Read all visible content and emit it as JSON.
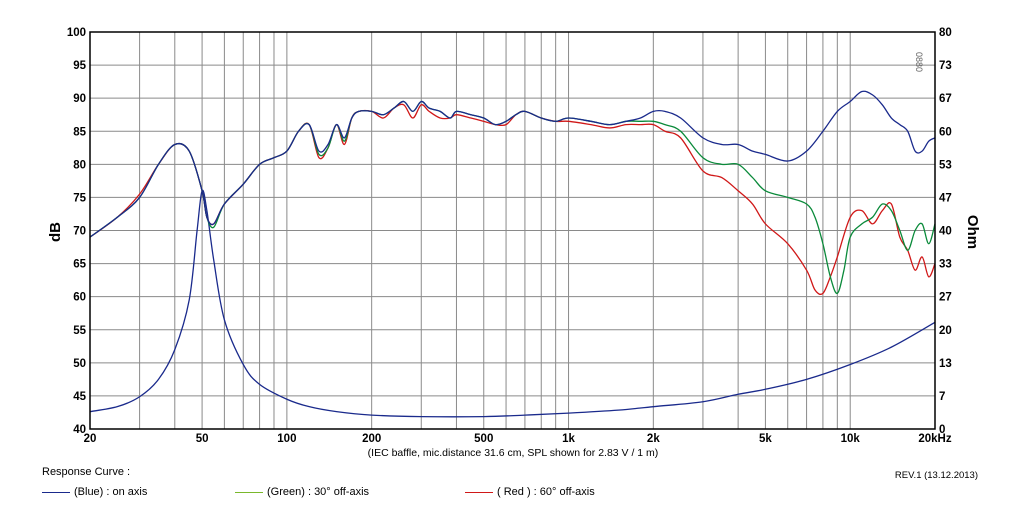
{
  "chart_data": {
    "type": "line",
    "xscale": "log",
    "xlim": [
      20,
      20000
    ],
    "xticks": [
      {
        "v": 20,
        "label": "20"
      },
      {
        "v": 50,
        "label": "50"
      },
      {
        "v": 100,
        "label": "100"
      },
      {
        "v": 200,
        "label": "200"
      },
      {
        "v": 500,
        "label": "500"
      },
      {
        "v": 1000,
        "label": "1k"
      },
      {
        "v": 2000,
        "label": "2k"
      },
      {
        "v": 5000,
        "label": "5k"
      },
      {
        "v": 10000,
        "label": "10k"
      },
      {
        "v": 20000,
        "label": "20kHz"
      }
    ],
    "ylabel": "dB",
    "ylim": [
      40,
      100
    ],
    "yticks": [
      40,
      45,
      50,
      55,
      60,
      65,
      70,
      75,
      80,
      85,
      90,
      95,
      100
    ],
    "y2label": "Ohm",
    "y2lim": [
      0,
      80
    ],
    "y2ticks": [
      "0",
      "7",
      "13",
      "20",
      "27",
      "33",
      "40",
      "47",
      "53",
      "60",
      "67",
      "73",
      "80"
    ],
    "note": "(IEC baffle, mic.distance 31.6 cm, SPL shown for 2.83 V / 1 m)",
    "watermark": "0880",
    "series": [
      {
        "name": "(Blue)  : on axis",
        "color": "#1a2a8c",
        "points": [
          [
            20,
            69
          ],
          [
            25,
            72
          ],
          [
            30,
            75
          ],
          [
            35,
            80
          ],
          [
            40,
            83
          ],
          [
            45,
            82
          ],
          [
            50,
            76
          ],
          [
            52,
            72
          ],
          [
            55,
            71
          ],
          [
            60,
            74
          ],
          [
            70,
            77
          ],
          [
            80,
            80
          ],
          [
            90,
            81
          ],
          [
            100,
            82
          ],
          [
            110,
            85
          ],
          [
            120,
            86
          ],
          [
            130,
            82
          ],
          [
            140,
            83
          ],
          [
            150,
            86
          ],
          [
            160,
            84
          ],
          [
            170,
            87
          ],
          [
            180,
            88
          ],
          [
            200,
            88
          ],
          [
            220,
            87.5
          ],
          [
            240,
            88.5
          ],
          [
            260,
            89.5
          ],
          [
            280,
            88
          ],
          [
            300,
            89.5
          ],
          [
            320,
            88.5
          ],
          [
            350,
            88
          ],
          [
            380,
            87
          ],
          [
            400,
            88
          ],
          [
            450,
            87.5
          ],
          [
            500,
            87
          ],
          [
            550,
            86
          ],
          [
            600,
            86.5
          ],
          [
            650,
            87.5
          ],
          [
            700,
            88
          ],
          [
            800,
            87
          ],
          [
            900,
            86.5
          ],
          [
            1000,
            87
          ],
          [
            1200,
            86.5
          ],
          [
            1400,
            86
          ],
          [
            1600,
            86.5
          ],
          [
            1800,
            87
          ],
          [
            2000,
            88
          ],
          [
            2200,
            88
          ],
          [
            2500,
            87
          ],
          [
            3000,
            84
          ],
          [
            3500,
            83
          ],
          [
            4000,
            83
          ],
          [
            4500,
            82
          ],
          [
            5000,
            81.5
          ],
          [
            6000,
            80.5
          ],
          [
            7000,
            82
          ],
          [
            8000,
            85
          ],
          [
            9000,
            88
          ],
          [
            10000,
            89.5
          ],
          [
            11000,
            91
          ],
          [
            12000,
            90.5
          ],
          [
            13000,
            89
          ],
          [
            14000,
            87
          ],
          [
            15000,
            86
          ],
          [
            16000,
            85
          ],
          [
            17000,
            82
          ],
          [
            18000,
            82
          ],
          [
            19000,
            83.5
          ],
          [
            20000,
            84
          ]
        ]
      },
      {
        "name": "(Green) : 30° off-axis",
        "color": "#0a8a3a",
        "points": [
          [
            20,
            69
          ],
          [
            25,
            72
          ],
          [
            30,
            75
          ],
          [
            35,
            80
          ],
          [
            40,
            83
          ],
          [
            45,
            82
          ],
          [
            50,
            76
          ],
          [
            52,
            72
          ],
          [
            55,
            70.5
          ],
          [
            60,
            74
          ],
          [
            70,
            77
          ],
          [
            80,
            80
          ],
          [
            90,
            81
          ],
          [
            100,
            82
          ],
          [
            110,
            85
          ],
          [
            120,
            86
          ],
          [
            130,
            81.5
          ],
          [
            140,
            82.5
          ],
          [
            150,
            86
          ],
          [
            160,
            83.5
          ],
          [
            170,
            87
          ],
          [
            180,
            88
          ],
          [
            200,
            88
          ],
          [
            220,
            87.5
          ],
          [
            240,
            88.5
          ],
          [
            260,
            89.5
          ],
          [
            280,
            88
          ],
          [
            300,
            89.5
          ],
          [
            320,
            88.5
          ],
          [
            350,
            88
          ],
          [
            380,
            87
          ],
          [
            400,
            88
          ],
          [
            450,
            87.5
          ],
          [
            500,
            87
          ],
          [
            550,
            86
          ],
          [
            600,
            86.5
          ],
          [
            650,
            87.5
          ],
          [
            700,
            88
          ],
          [
            800,
            87
          ],
          [
            900,
            86.5
          ],
          [
            1000,
            87
          ],
          [
            1200,
            86.5
          ],
          [
            1400,
            86
          ],
          [
            1600,
            86.5
          ],
          [
            1800,
            86.5
          ],
          [
            2000,
            86.5
          ],
          [
            2200,
            86
          ],
          [
            2500,
            85
          ],
          [
            3000,
            81
          ],
          [
            3500,
            80
          ],
          [
            4000,
            80
          ],
          [
            4500,
            78
          ],
          [
            5000,
            76
          ],
          [
            6000,
            75
          ],
          [
            7000,
            74
          ],
          [
            7500,
            72
          ],
          [
            8000,
            68
          ],
          [
            8500,
            63
          ],
          [
            9000,
            60.5
          ],
          [
            9500,
            64
          ],
          [
            10000,
            69
          ],
          [
            11000,
            71
          ],
          [
            12000,
            72
          ],
          [
            13000,
            74
          ],
          [
            14000,
            73
          ],
          [
            15000,
            70
          ],
          [
            16000,
            67
          ],
          [
            17000,
            70
          ],
          [
            18000,
            71
          ],
          [
            19000,
            68
          ],
          [
            20000,
            71
          ]
        ]
      },
      {
        "name": "( Red ) : 60° off-axis",
        "color": "#d01818",
        "points": [
          [
            20,
            69
          ],
          [
            25,
            72
          ],
          [
            30,
            75.5
          ],
          [
            35,
            80
          ],
          [
            40,
            83
          ],
          [
            45,
            82
          ],
          [
            50,
            76
          ],
          [
            52,
            72
          ],
          [
            55,
            71
          ],
          [
            60,
            74
          ],
          [
            70,
            77
          ],
          [
            80,
            80
          ],
          [
            90,
            81
          ],
          [
            100,
            82
          ],
          [
            110,
            85
          ],
          [
            120,
            86
          ],
          [
            130,
            81
          ],
          [
            140,
            82.5
          ],
          [
            150,
            86
          ],
          [
            160,
            83
          ],
          [
            170,
            87
          ],
          [
            180,
            88
          ],
          [
            200,
            88
          ],
          [
            220,
            87
          ],
          [
            240,
            88.5
          ],
          [
            260,
            89
          ],
          [
            280,
            87
          ],
          [
            300,
            89
          ],
          [
            320,
            88
          ],
          [
            350,
            87
          ],
          [
            380,
            87
          ],
          [
            400,
            87.5
          ],
          [
            450,
            87
          ],
          [
            500,
            86.5
          ],
          [
            550,
            86
          ],
          [
            600,
            86
          ],
          [
            650,
            87.5
          ],
          [
            700,
            88
          ],
          [
            800,
            87
          ],
          [
            900,
            86.5
          ],
          [
            1000,
            86.5
          ],
          [
            1200,
            86
          ],
          [
            1400,
            85.5
          ],
          [
            1600,
            86
          ],
          [
            1800,
            86
          ],
          [
            2000,
            86
          ],
          [
            2200,
            85
          ],
          [
            2500,
            84
          ],
          [
            3000,
            79
          ],
          [
            3500,
            78
          ],
          [
            4000,
            76
          ],
          [
            4500,
            74
          ],
          [
            5000,
            71
          ],
          [
            6000,
            68
          ],
          [
            7000,
            64
          ],
          [
            7500,
            61
          ],
          [
            8000,
            60.5
          ],
          [
            8500,
            63
          ],
          [
            9000,
            66
          ],
          [
            10000,
            72
          ],
          [
            11000,
            73
          ],
          [
            12000,
            71
          ],
          [
            13000,
            73
          ],
          [
            14000,
            74
          ],
          [
            15000,
            69
          ],
          [
            16000,
            67
          ],
          [
            17000,
            64
          ],
          [
            18000,
            66
          ],
          [
            19000,
            63
          ],
          [
            20000,
            65
          ]
        ]
      },
      {
        "name": "Impedance",
        "axis": "right",
        "color": "#1a2a8c",
        "points": [
          [
            20,
            3.5
          ],
          [
            25,
            4.5
          ],
          [
            30,
            6.5
          ],
          [
            35,
            10
          ],
          [
            40,
            16
          ],
          [
            45,
            26
          ],
          [
            48,
            40
          ],
          [
            50,
            48
          ],
          [
            52,
            44
          ],
          [
            55,
            34
          ],
          [
            60,
            22
          ],
          [
            70,
            13
          ],
          [
            80,
            9
          ],
          [
            100,
            6
          ],
          [
            120,
            4.5
          ],
          [
            150,
            3.5
          ],
          [
            200,
            2.8
          ],
          [
            300,
            2.5
          ],
          [
            500,
            2.5
          ],
          [
            700,
            2.8
          ],
          [
            1000,
            3.2
          ],
          [
            1500,
            3.8
          ],
          [
            2000,
            4.5
          ],
          [
            3000,
            5.5
          ],
          [
            4000,
            7
          ],
          [
            5000,
            8
          ],
          [
            7000,
            10
          ],
          [
            10000,
            13
          ],
          [
            14000,
            16.5
          ],
          [
            20000,
            21.5
          ]
        ]
      }
    ],
    "legend_placement": "bottom"
  },
  "footer": {
    "title": "Response Curve :",
    "revision": "REV.1 (13.12.2013)",
    "legend": [
      {
        "label": "(Blue)  : on axis",
        "color": "#1a2a8c"
      },
      {
        "label": "(Green) : 30° off-axis",
        "color": "#7ab82c"
      },
      {
        "label": "( Red ) : 60° off-axis",
        "color": "#d01818"
      }
    ]
  }
}
